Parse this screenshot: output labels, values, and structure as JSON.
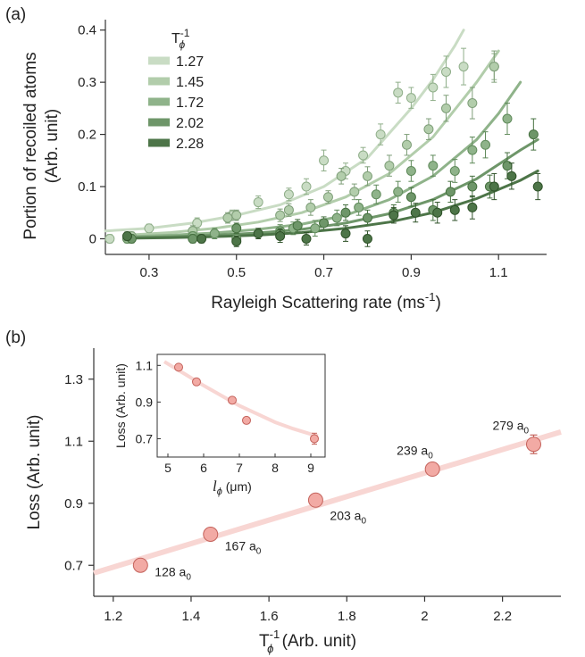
{
  "panel_a_label": "(a)",
  "panel_b_label": "(b)",
  "chart_data": [
    {
      "id": "a",
      "type": "scatter",
      "xlabel": "Rayleigh Scattering rate (ms",
      "xlabel_sup": "-1",
      "xlabel_end": ")",
      "ylabel_line1": "Portion of recoiled atoms",
      "ylabel_line2": "(Arb. unit)",
      "xlim": [
        0.2,
        1.21
      ],
      "ylim": [
        -0.03,
        0.42
      ],
      "xticks": [
        0.3,
        0.5,
        0.7,
        0.9,
        1.1
      ],
      "xtick_labels": [
        "0.3",
        "0.5",
        "0.7",
        "0.9",
        "1.1"
      ],
      "yticks": [
        0,
        0.1,
        0.2,
        0.3,
        0.4
      ],
      "ytick_labels": [
        "0",
        "0.1",
        "0.2",
        "0.3",
        "0.4"
      ],
      "legend_title": "T",
      "legend_title_sub": "ϕ",
      "legend_title_sup": "-1",
      "legend_position": "top-left",
      "series": [
        {
          "name": "1.27",
          "color": "#c9dcc4",
          "edge": "#8fae89",
          "x": [
            0.21,
            0.3,
            0.41,
            0.49,
            0.55,
            0.62,
            0.66,
            0.7,
            0.75,
            0.79,
            0.83,
            0.87,
            0.9,
            0.95,
            0.98,
            1.02,
            1.09
          ],
          "y": [
            0.0,
            0.02,
            0.03,
            0.045,
            0.07,
            0.085,
            0.1,
            0.15,
            0.13,
            0.16,
            0.2,
            0.28,
            0.27,
            0.29,
            0.32,
            0.33,
            0.33
          ],
          "err": [
            0.008,
            0.008,
            0.01,
            0.01,
            0.012,
            0.012,
            0.015,
            0.02,
            0.015,
            0.015,
            0.02,
            0.02,
            0.02,
            0.025,
            0.03,
            0.035,
            0.025
          ],
          "fit_x": [
            0.2,
            0.3,
            0.4,
            0.5,
            0.6,
            0.7,
            0.8,
            0.9,
            0.95,
            1.0,
            1.02
          ],
          "fit_y": [
            0.015,
            0.02,
            0.03,
            0.045,
            0.065,
            0.1,
            0.155,
            0.25,
            0.305,
            0.37,
            0.4
          ]
        },
        {
          "name": "1.45",
          "color": "#b2cdab",
          "edge": "#7e9e78",
          "x": [
            0.26,
            0.4,
            0.48,
            0.5,
            0.6,
            0.62,
            0.67,
            0.71,
            0.74,
            0.77,
            0.8,
            0.85,
            0.89,
            0.94,
            0.98,
            1.04,
            1.09
          ],
          "y": [
            0.005,
            0.015,
            0.04,
            0.045,
            0.045,
            0.055,
            0.06,
            0.08,
            0.12,
            0.09,
            0.12,
            0.14,
            0.18,
            0.21,
            0.25,
            0.26,
            0.33
          ],
          "err": [
            0.008,
            0.01,
            0.01,
            0.01,
            0.012,
            0.012,
            0.015,
            0.012,
            0.015,
            0.015,
            0.018,
            0.02,
            0.02,
            0.02,
            0.025,
            0.03,
            0.03
          ],
          "fit_x": [
            0.25,
            0.35,
            0.45,
            0.55,
            0.65,
            0.75,
            0.85,
            0.95,
            1.05,
            1.1
          ],
          "fit_y": [
            0.007,
            0.012,
            0.02,
            0.032,
            0.05,
            0.08,
            0.125,
            0.195,
            0.3,
            0.36
          ]
        },
        {
          "name": "1.72",
          "color": "#8fb38a",
          "edge": "#5f8a5a",
          "x": [
            0.25,
            0.4,
            0.45,
            0.5,
            0.6,
            0.63,
            0.68,
            0.73,
            0.78,
            0.82,
            0.87,
            0.9,
            0.95,
            1.0,
            1.04,
            1.07,
            1.12
          ],
          "y": [
            0.0,
            0.005,
            0.01,
            0.0,
            0.015,
            0.02,
            0.02,
            0.04,
            0.06,
            0.085,
            0.09,
            0.13,
            0.14,
            0.13,
            0.17,
            0.18,
            0.23
          ],
          "err": [
            0.008,
            0.008,
            0.01,
            0.01,
            0.012,
            0.012,
            0.015,
            0.015,
            0.015,
            0.018,
            0.02,
            0.02,
            0.02,
            0.022,
            0.025,
            0.025,
            0.03
          ],
          "fit_x": [
            0.25,
            0.35,
            0.45,
            0.55,
            0.65,
            0.75,
            0.85,
            0.95,
            1.05,
            1.1,
            1.15
          ],
          "fit_y": [
            0.004,
            0.007,
            0.011,
            0.018,
            0.028,
            0.045,
            0.075,
            0.12,
            0.19,
            0.24,
            0.3
          ]
        },
        {
          "name": "2.02",
          "color": "#6e9669",
          "edge": "#45703f",
          "x": [
            0.26,
            0.4,
            0.5,
            0.6,
            0.64,
            0.7,
            0.75,
            0.8,
            0.86,
            0.9,
            0.95,
            0.99,
            1.04,
            1.08,
            1.12,
            1.18
          ],
          "y": [
            0.0,
            0.0,
            0.02,
            0.01,
            0.025,
            0.03,
            0.05,
            0.04,
            0.05,
            0.08,
            0.055,
            0.09,
            0.1,
            0.1,
            0.14,
            0.2
          ],
          "err": [
            0.008,
            0.008,
            0.01,
            0.01,
            0.012,
            0.012,
            0.015,
            0.015,
            0.015,
            0.018,
            0.02,
            0.02,
            0.02,
            0.022,
            0.025,
            0.03
          ],
          "fit_x": [
            0.25,
            0.35,
            0.45,
            0.55,
            0.65,
            0.75,
            0.85,
            0.95,
            1.05,
            1.15,
            1.19
          ],
          "fit_y": [
            0.002,
            0.004,
            0.007,
            0.011,
            0.018,
            0.03,
            0.048,
            0.075,
            0.115,
            0.17,
            0.19
          ]
        },
        {
          "name": "2.28",
          "color": "#4d7548",
          "edge": "#2f5229",
          "x": [
            0.25,
            0.42,
            0.5,
            0.55,
            0.6,
            0.66,
            0.75,
            0.8,
            0.86,
            0.91,
            0.96,
            1.0,
            1.04,
            1.09,
            1.13,
            1.19
          ],
          "y": [
            0.005,
            0.0,
            -0.005,
            0.01,
            0.005,
            0.0,
            0.01,
            0.0,
            0.045,
            0.05,
            0.05,
            0.055,
            0.06,
            0.1,
            0.12,
            0.1
          ],
          "err": [
            0.008,
            0.008,
            0.01,
            0.01,
            0.012,
            0.012,
            0.015,
            0.015,
            0.015,
            0.018,
            0.02,
            0.02,
            0.022,
            0.025,
            0.025,
            0.025
          ],
          "fit_x": [
            0.25,
            0.35,
            0.45,
            0.55,
            0.65,
            0.75,
            0.85,
            0.95,
            1.05,
            1.15,
            1.19
          ],
          "fit_y": [
            0.001,
            0.002,
            0.004,
            0.007,
            0.012,
            0.02,
            0.032,
            0.05,
            0.077,
            0.112,
            0.13
          ]
        }
      ]
    },
    {
      "id": "b",
      "type": "scatter",
      "xlabel": "T",
      "xlabel_sub": "ϕ",
      "xlabel_sup": "-1",
      "xlabel_end": " (Arb. unit)",
      "ylabel": "Loss (Arb. unit)",
      "xlim": [
        1.15,
        2.35
      ],
      "ylim": [
        0.6,
        1.4
      ],
      "xticks": [
        1.2,
        1.4,
        1.6,
        1.8,
        2.0,
        2.2
      ],
      "xtick_labels": [
        "1.2",
        "1.4",
        "1.6",
        "1.8",
        "2",
        "2.2"
      ],
      "yticks": [
        0.7,
        0.9,
        1.1,
        1.3
      ],
      "ytick_labels": [
        "0.7",
        "0.9",
        "1.1",
        "1.3"
      ],
      "color": "#f2aaa4",
      "edge": "#c4625b",
      "fit_color": "#f8d6d3",
      "x": [
        1.27,
        1.45,
        1.72,
        2.02,
        2.28
      ],
      "y": [
        0.7,
        0.8,
        0.91,
        1.01,
        1.09
      ],
      "err": [
        0.01,
        0.01,
        0.015,
        0.01,
        0.03
      ],
      "annotations": [
        "128",
        "167",
        "203",
        "239",
        "279"
      ],
      "annotation_unit": "a",
      "annotation_sub": "0",
      "fit_x": [
        1.15,
        2.35
      ],
      "fit_y": [
        0.675,
        1.13
      ],
      "inset": {
        "type": "scatter",
        "xlabel": "l",
        "xlabel_sub": "ϕ",
        "xlabel_end": " (μm)",
        "ylabel": "Loss (Arb. unit)",
        "xlim": [
          4.7,
          9.4
        ],
        "ylim": [
          0.6,
          1.16
        ],
        "xticks": [
          5,
          6,
          7,
          8,
          9
        ],
        "xtick_labels": [
          "5",
          "6",
          "7",
          "8",
          "9"
        ],
        "yticks": [
          0.7,
          0.9,
          1.1
        ],
        "ytick_labels": [
          "0.7",
          "0.9",
          "1.1"
        ],
        "x": [
          5.3,
          5.8,
          6.8,
          7.2,
          9.1
        ],
        "y": [
          1.09,
          1.01,
          0.91,
          0.8,
          0.7
        ],
        "err": [
          0.01,
          0.01,
          0.015,
          0.01,
          0.03
        ],
        "fit_x": [
          4.9,
          5.5,
          6.0,
          6.5,
          7.0,
          7.5,
          8.0,
          8.5,
          9.0,
          9.2
        ],
        "fit_y": [
          1.12,
          1.05,
          0.99,
          0.935,
          0.88,
          0.835,
          0.79,
          0.755,
          0.725,
          0.715
        ]
      }
    }
  ]
}
